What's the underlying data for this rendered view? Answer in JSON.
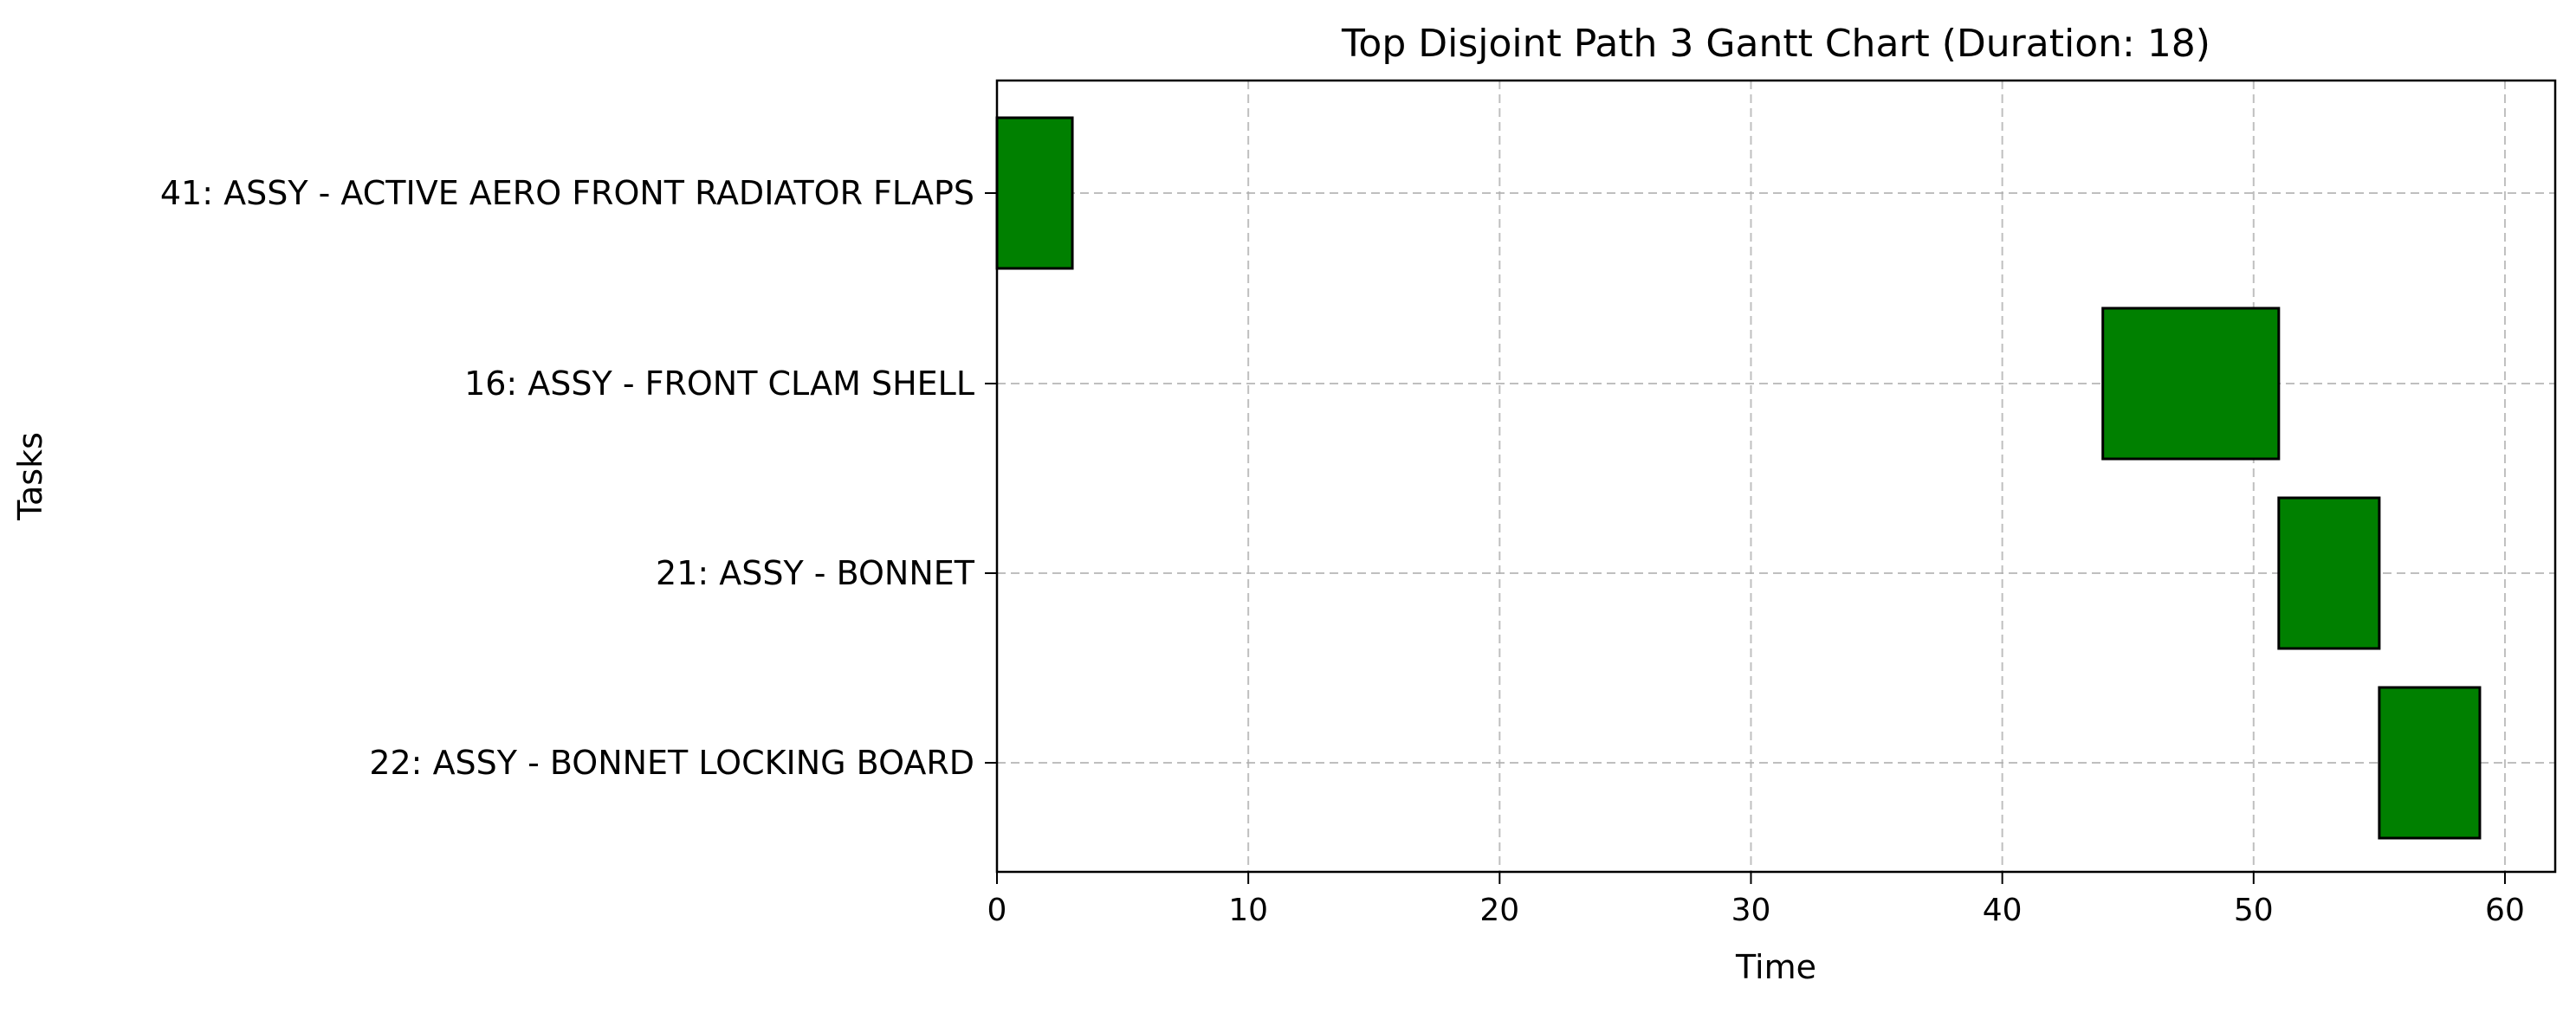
{
  "chart_data": {
    "type": "gantt",
    "title": "Top Disjoint Path 3 Gantt Chart (Duration: 18)",
    "xlabel": "Time",
    "ylabel": "Tasks",
    "xlim": [
      0,
      62
    ],
    "xticks": [
      0,
      10,
      20,
      30,
      40,
      50,
      60
    ],
    "grid": true,
    "bar_color": "#008000",
    "edge_color": "#000000",
    "grid_color": "#b0b0b0",
    "tasks": [
      {
        "label": "41: ASSY - ACTIVE AERO FRONT RADIATOR FLAPS",
        "start": 0,
        "end": 3
      },
      {
        "label": "16: ASSY - FRONT CLAM SHELL",
        "start": 44,
        "end": 51
      },
      {
        "label": "21: ASSY - BONNET",
        "start": 51,
        "end": 55
      },
      {
        "label": "22: ASSY - BONNET LOCKING BOARD",
        "start": 55,
        "end": 59
      }
    ]
  }
}
